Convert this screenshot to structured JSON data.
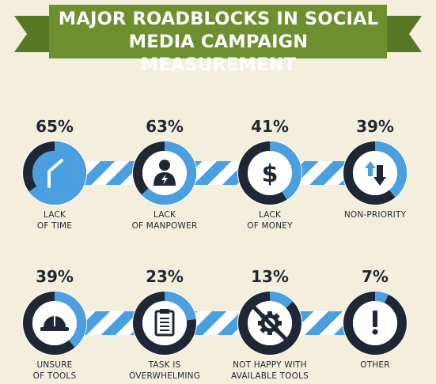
{
  "title_lines": [
    "MAJOR ROADBLOCKS IN SOCIAL",
    "MEDIA CAMPAIGN MEASUREMENT"
  ],
  "colors": {
    "background": "#f3efdc",
    "banner": "#6e8f2e",
    "ring_fill": "#4a9fe0",
    "ring_track": "#1e2733",
    "stripe": "#4a9fe0",
    "text": "#1e2733"
  },
  "chart_data": {
    "type": "donut",
    "unit": "%",
    "items": [
      {
        "value": 65,
        "label_lines": [
          "LACK",
          "OF TIME"
        ],
        "icon": "clock-hand-icon"
      },
      {
        "value": 63,
        "label_lines": [
          "LACK",
          "OF MANPOWER"
        ],
        "icon": "worker-icon"
      },
      {
        "value": 41,
        "label_lines": [
          "LACK",
          "OF MONEY"
        ],
        "icon": "dollar-icon"
      },
      {
        "value": 39,
        "label_lines": [
          "NON-PRIORITY"
        ],
        "icon": "up-down-arrows-icon"
      },
      {
        "value": 39,
        "label_lines": [
          "UNSURE",
          "OF TOOLS"
        ],
        "icon": "hard-hat-icon"
      },
      {
        "value": 23,
        "label_lines": [
          "TASK IS",
          "OVERWHELMING"
        ],
        "icon": "clipboard-icon"
      },
      {
        "value": 13,
        "label_lines": [
          "NOT HAPPY WITH",
          "AVAILABLE TOOLS"
        ],
        "icon": "no-gear-icon"
      },
      {
        "value": 7,
        "label_lines": [
          "OTHER"
        ],
        "icon": "exclamation-icon"
      }
    ]
  }
}
